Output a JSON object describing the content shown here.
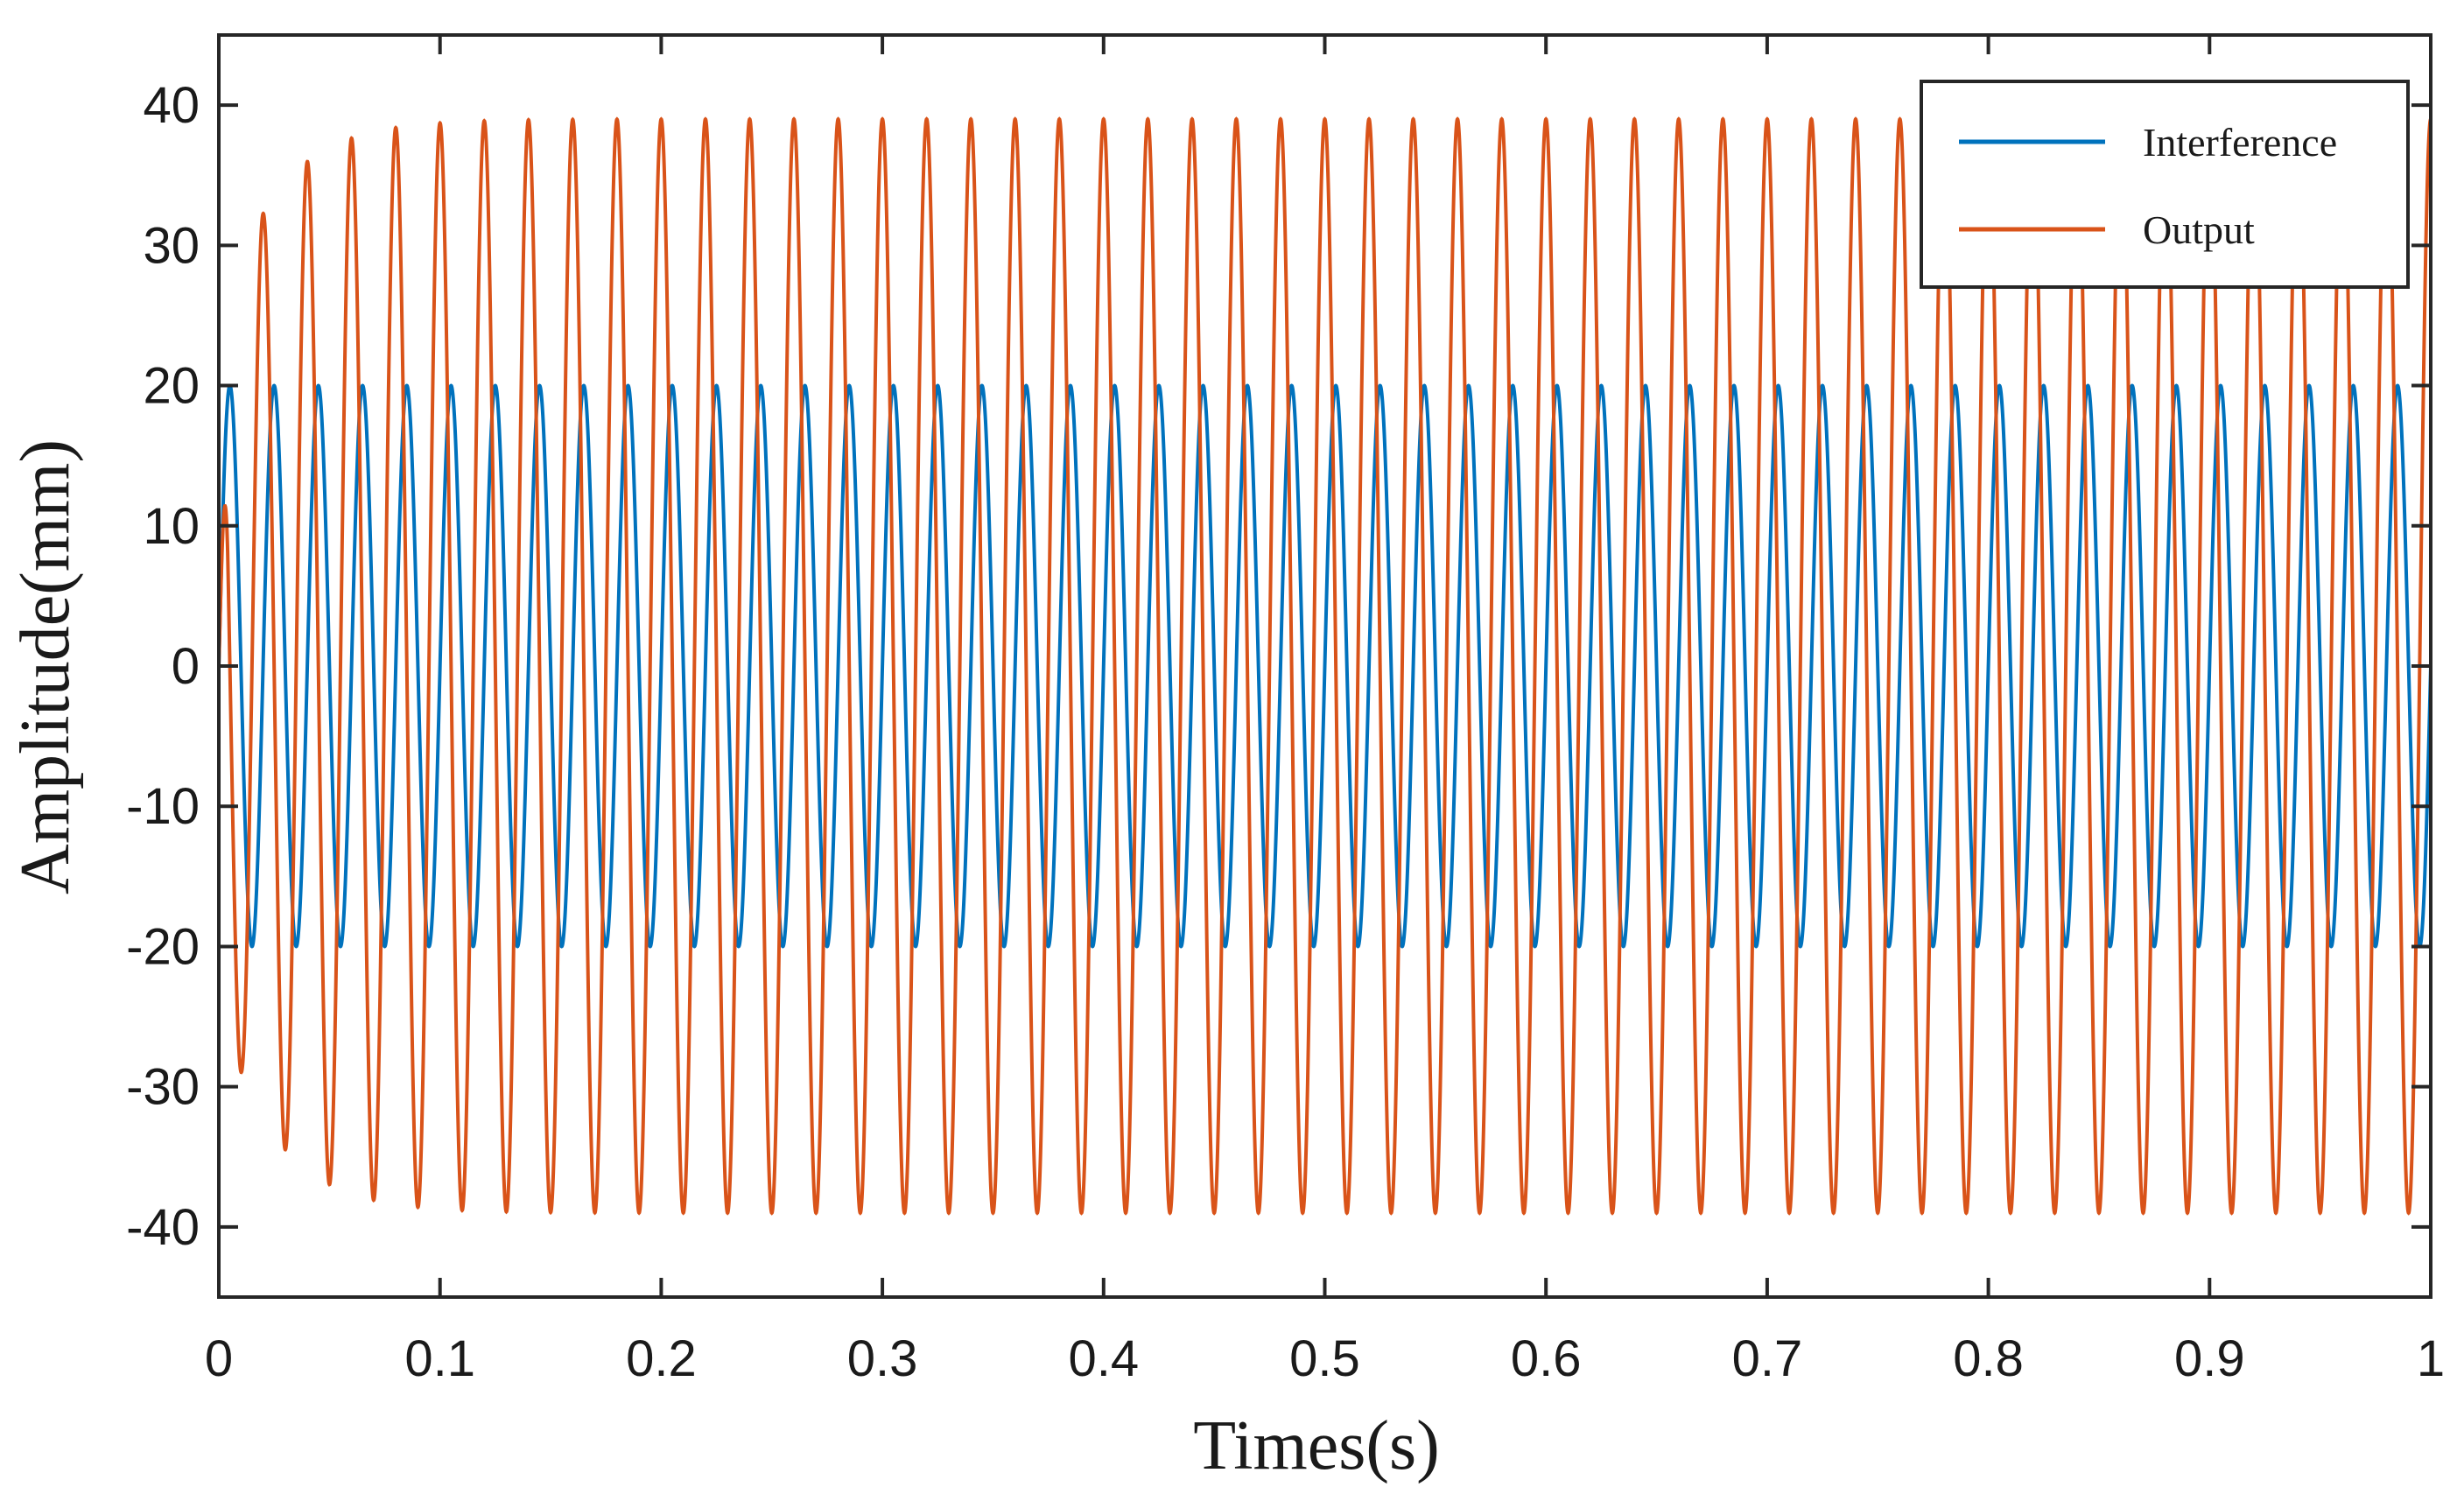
{
  "chart_data": {
    "type": "line",
    "title": "",
    "xlabel": "Times(s)",
    "ylabel": "Amplitude(mm)",
    "xlim": [
      0,
      1
    ],
    "ylim": [
      -45,
      45
    ],
    "x_ticks": [
      "0",
      "0.1",
      "0.2",
      "0.3",
      "0.4",
      "0.5",
      "0.6",
      "0.7",
      "0.8",
      "0.9",
      "1"
    ],
    "y_ticks": [
      "40",
      "30",
      "20",
      "10",
      "0",
      "-10",
      "-20",
      "-30",
      "-40"
    ],
    "grid": false,
    "legend_position": "top-right",
    "series": [
      {
        "name": "Interference",
        "color": "#0072BD",
        "amplitude": 20,
        "frequency_hz": 50,
        "phase": "sine starting at 0",
        "description_values": {
          "peak": 20,
          "trough": -20
        }
      },
      {
        "name": "Output",
        "color": "#D95319",
        "frequency_hz": 50,
        "steady_state_amplitude": 39,
        "transient": {
          "start_peak": 24,
          "settling_time_s": 0.1
        },
        "description_values": {
          "peak": 39,
          "trough": -39
        }
      }
    ]
  }
}
